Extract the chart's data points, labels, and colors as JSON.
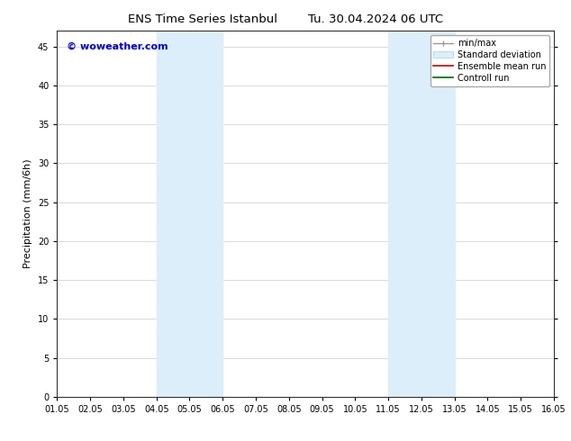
{
  "title_left": "ENS Time Series Istanbul",
  "title_right": "Tu. 30.04.2024 06 UTC",
  "ylabel": "Precipitation (mm/6h)",
  "xlabel": "",
  "xlim": [
    0,
    15
  ],
  "ylim": [
    0,
    47
  ],
  "yticks": [
    0,
    5,
    10,
    15,
    20,
    25,
    30,
    35,
    40,
    45
  ],
  "xtick_labels": [
    "01.05",
    "02.05",
    "03.05",
    "04.05",
    "05.05",
    "06.05",
    "07.05",
    "08.05",
    "09.05",
    "10.05",
    "11.05",
    "12.05",
    "13.05",
    "14.05",
    "15.05",
    "16.05"
  ],
  "xtick_positions": [
    0,
    1,
    2,
    3,
    4,
    5,
    6,
    7,
    8,
    9,
    10,
    11,
    12,
    13,
    14,
    15
  ],
  "shaded_regions": [
    {
      "xmin": 3.0,
      "xmax": 5.0,
      "color": "#dceef9"
    },
    {
      "xmin": 10.0,
      "xmax": 12.0,
      "color": "#dceef9"
    }
  ],
  "background_color": "#ffffff",
  "watermark_text": "© woweather.com",
  "watermark_color": "#0000cc",
  "title_fontsize": 9.5,
  "ylabel_fontsize": 8,
  "tick_fontsize": 7,
  "legend_fontsize": 7,
  "watermark_fontsize": 8
}
